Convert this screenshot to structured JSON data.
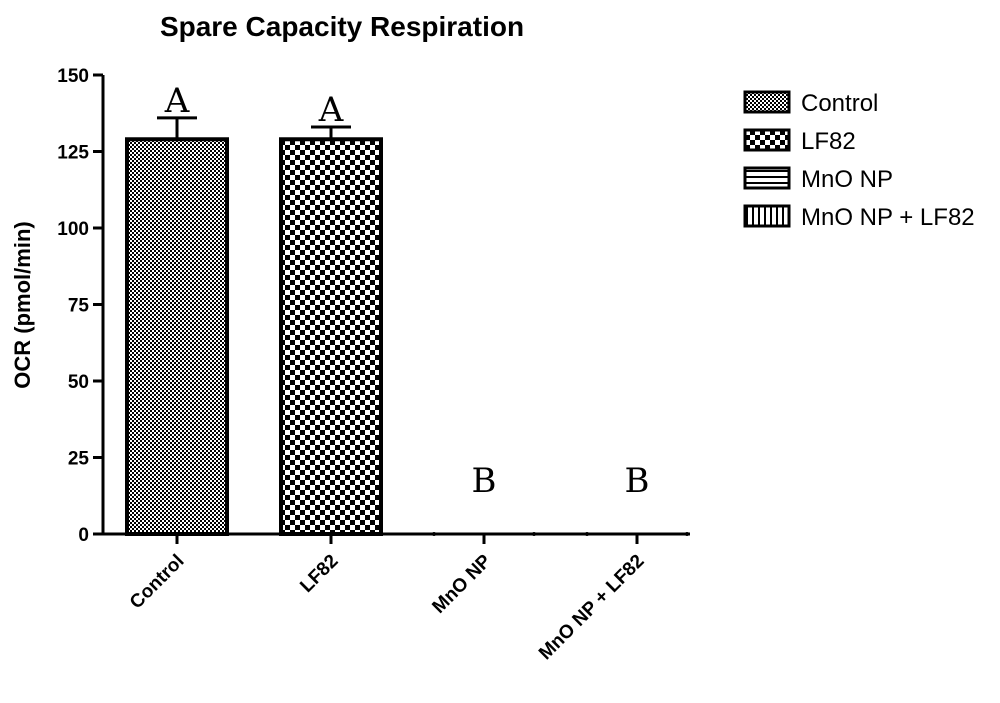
{
  "chart_data": {
    "type": "bar",
    "title": "Spare Capacity Respiration",
    "ylabel": "OCR (pmol/min)",
    "xlabel": "",
    "ylim": [
      0,
      150
    ],
    "yticks": [
      0,
      25,
      50,
      75,
      100,
      125,
      150
    ],
    "categories": [
      "Control",
      "LF82",
      "MnO NP",
      "MnO NP + LF82"
    ],
    "values": [
      129,
      129,
      0,
      0
    ],
    "errors": [
      7,
      4,
      0,
      0
    ],
    "significance": [
      "A",
      "A",
      "B",
      "B"
    ],
    "patterns": [
      "fine-checker",
      "checker",
      "horizontal-lines",
      "vertical-lines"
    ],
    "legend": {
      "placement": "right",
      "entries": [
        "Control",
        "LF82",
        "MnO NP",
        "MnO NP + LF82"
      ]
    },
    "grid": false,
    "colors": {
      "bar_fill": "#000000",
      "bar_bg": "#ffffff",
      "axis": "#000000"
    }
  }
}
